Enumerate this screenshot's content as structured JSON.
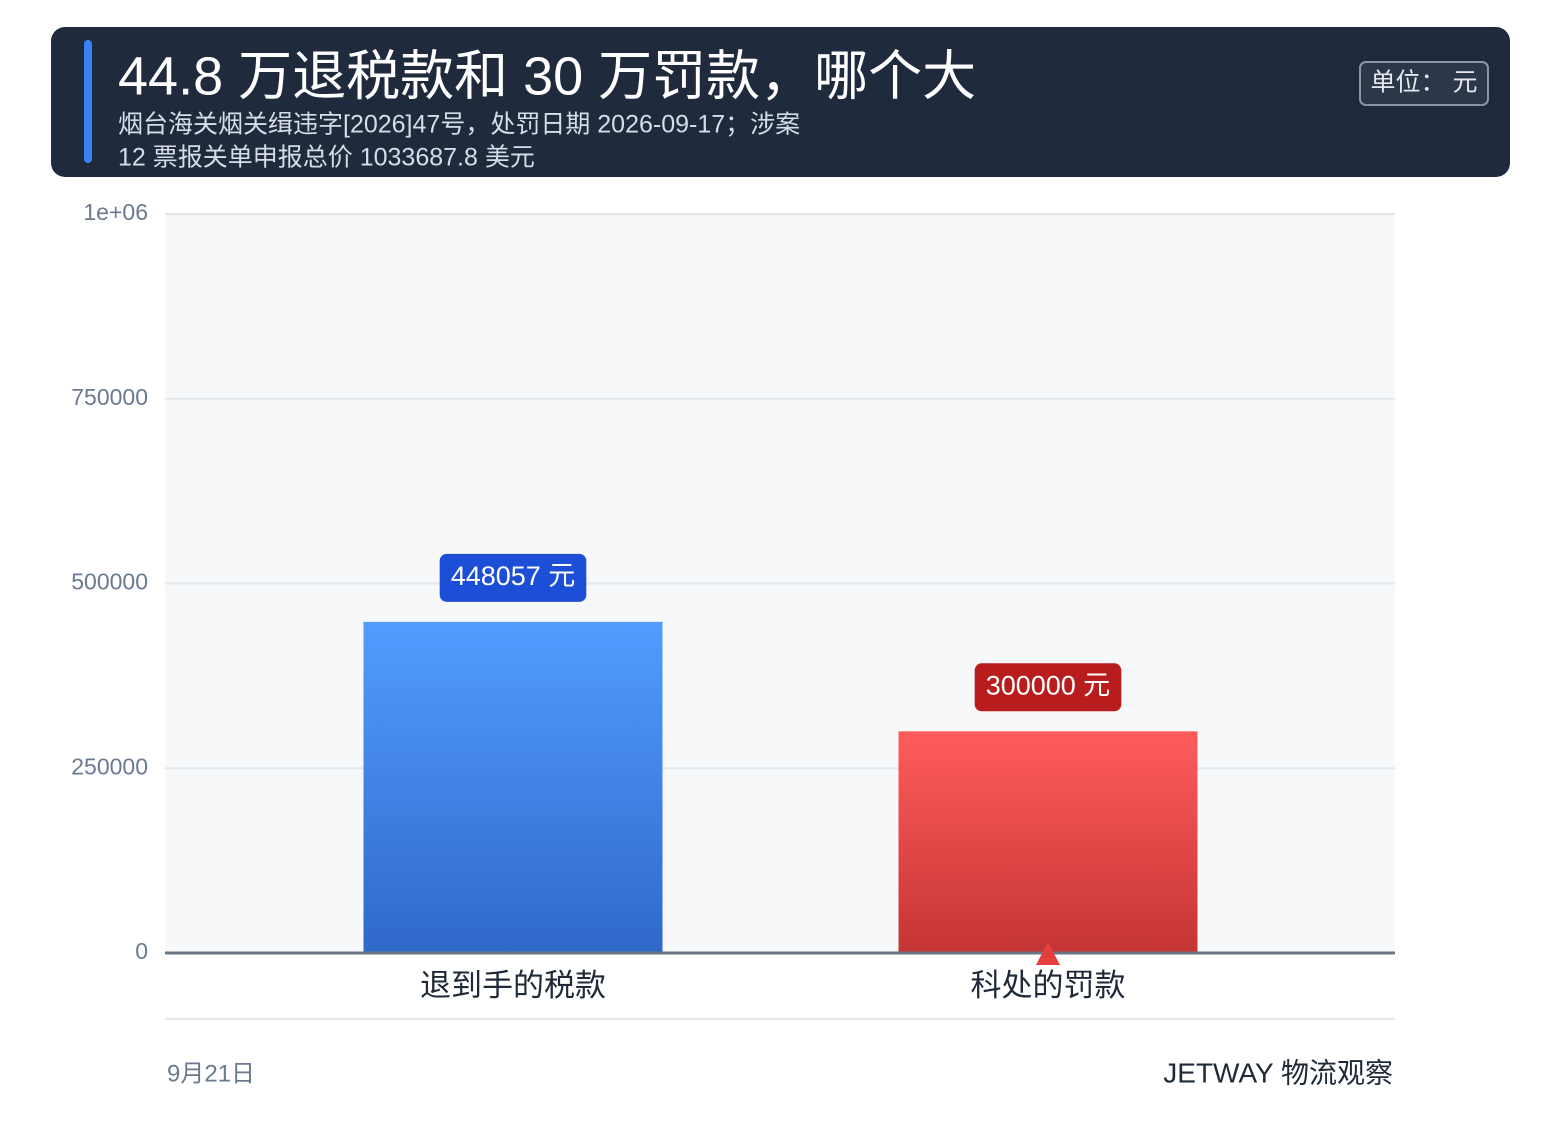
{
  "chart_data": {
    "type": "bar",
    "title": "44.8 万退税款和 30 万罚款，哪个大",
    "subtitle": [
      "烟台海关烟关缉违字[2026]47号，处罚日期 2026-09-17；涉案",
      "12 票报关单申报总价 1033687.8 美元"
    ],
    "unit": "单位： 元",
    "categories": [
      "退到手的税款",
      "科处的罚款"
    ],
    "values": [
      448057,
      300000
    ],
    "value_labels": [
      "448057 元",
      "300000 元"
    ],
    "colors": [
      [
        "#529cff",
        "#2f69c9"
      ],
      [
        "#ff5c5c",
        "#c53434"
      ]
    ],
    "label_colors": [
      "#1d4ed8",
      "#b91c1c"
    ],
    "ylim": [
      0,
      1000000
    ],
    "yticks": [
      0,
      250000,
      500000,
      750000,
      {
        "value": 1000000,
        "label": "1e+06"
      }
    ],
    "grid": true,
    "date": "9月21日",
    "source": "JETWAY 物流观察"
  }
}
